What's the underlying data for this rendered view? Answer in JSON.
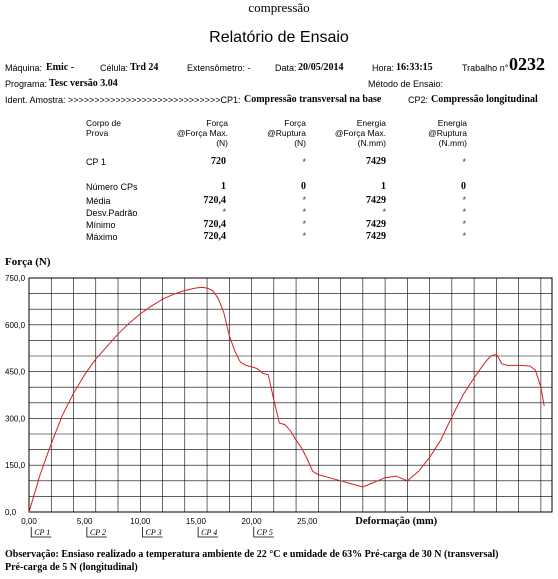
{
  "header": {
    "top_title": "compressão",
    "report_title": "Relatório de Ensaio",
    "maquina_label": "Máquina:",
    "maquina_value": "Emic -",
    "celula_label": "Célula:",
    "celula_value": "Trd 24",
    "extensometro_label": "Extensômetro: -",
    "data_label": "Data:",
    "data_value": "20/05/2014",
    "hora_label": "Hora:",
    "hora_value": "16:33:15",
    "trabalho_label": "Trabalho n°",
    "trabalho_value": "0232",
    "programa_label": "Programa:",
    "programa_value": "Tesc versão 3.04",
    "metodo_label": "Método de Ensaio:",
    "ident_label": "Ident. Amostra: >>>>>>>>>>>>>>>>>>>>>>>>>>>>>CP1:",
    "cp1_value": "Compressão transversal na base",
    "cp2_label": "CP2:",
    "cp2_value": "Compressão longitudinal"
  },
  "table": {
    "col0": [
      "Corpo de",
      "Prova"
    ],
    "col1": [
      "Força",
      "@Força Max.",
      "(N)"
    ],
    "col2": [
      "Força",
      "@Ruptura",
      "(N)"
    ],
    "col3": [
      "Energia",
      "@Força Max.",
      "(N.mm)"
    ],
    "col4": [
      "Energia",
      "@Ruptura",
      "(N.mm)"
    ],
    "cp_row": {
      "label": "CP 1",
      "forca_max": "720",
      "forca_rup": "*",
      "energia_max": "7429",
      "energia_rup": "*"
    },
    "stats": [
      {
        "label": "Número CPs",
        "forca_max": "1",
        "forca_rup": "0",
        "energia_max": "1",
        "energia_rup": "0"
      },
      {
        "label": "Média",
        "forca_max": "720,4",
        "forca_rup": "*",
        "energia_max": "7429",
        "energia_rup": "*"
      },
      {
        "label": "Desv.Padrão",
        "forca_max": "*",
        "forca_rup": "*",
        "energia_max": "*",
        "energia_rup": "*"
      },
      {
        "label": "Mínimo",
        "forca_max": "720,4",
        "forca_rup": "*",
        "energia_max": "7429",
        "energia_rup": "*"
      },
      {
        "label": "Máximo",
        "forca_max": "720,4",
        "forca_rup": "*",
        "energia_max": "7429",
        "energia_rup": "*"
      }
    ]
  },
  "chart_data": {
    "type": "line",
    "title": "",
    "ylabel": "Força (N)",
    "xlabel": "Deformação (mm)",
    "xlim": [
      0,
      47
    ],
    "ylim": [
      0,
      750
    ],
    "x_ticks": [
      "0,00",
      "5,00",
      "10,00",
      "15,00",
      "20,00",
      "25,00"
    ],
    "y_ticks": [
      "750,0",
      "600,0",
      "450,0",
      "300,0",
      "150,0",
      "0,0"
    ],
    "cp_markers": [
      {
        "label": "CP 1",
        "x": 0.2
      },
      {
        "label": "CP 2",
        "x": 5.2
      },
      {
        "label": "CP 3",
        "x": 10.2
      },
      {
        "label": "CP 4",
        "x": 15.2
      },
      {
        "label": "CP 5",
        "x": 20.2
      }
    ],
    "series": [
      {
        "color": "#d42020",
        "x": [
          0,
          0.5,
          1,
          2,
          3,
          4,
          5,
          6,
          7,
          8,
          9,
          10,
          11,
          12,
          13,
          14,
          15,
          15.5,
          16,
          16.5,
          17,
          17.5,
          18,
          18.5,
          19,
          19.5,
          20,
          20.5,
          21,
          21.5,
          22,
          22.5,
          23,
          23.5,
          24,
          24.5,
          25,
          25.5,
          26,
          27,
          28,
          29,
          30,
          31,
          32,
          33,
          34,
          35,
          36,
          37,
          38,
          39,
          40,
          41,
          41.5,
          42,
          42.5,
          43,
          44,
          45,
          45.5,
          46,
          46.3
        ],
        "y": [
          0,
          60,
          120,
          220,
          310,
          380,
          440,
          490,
          530,
          570,
          605,
          635,
          660,
          682,
          698,
          710,
          718,
          720,
          718,
          710,
          685,
          640,
          565,
          515,
          480,
          470,
          465,
          460,
          445,
          440,
          360,
          285,
          280,
          260,
          230,
          205,
          170,
          130,
          120,
          110,
          100,
          90,
          80,
          95,
          110,
          115,
          100,
          130,
          175,
          230,
          305,
          375,
          430,
          480,
          500,
          505,
          475,
          470,
          470,
          468,
          455,
          400,
          340
        ]
      }
    ]
  },
  "observacao": {
    "text1": "Observação: Ensiaso realizado a temperatura ambiente de 22 °C e umidade de 63% Pré-carga de 30 N (transversal)",
    "text2": "Pré-carga de 5 N (longitudinal)"
  }
}
